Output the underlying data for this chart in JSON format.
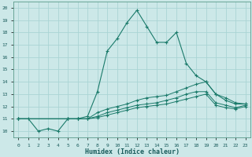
{
  "xlabel": "Humidex (Indice chaleur)",
  "ylabel": "",
  "bg_color": "#cce8e8",
  "grid_color": "#aad4d4",
  "line_color": "#1a7a6a",
  "xlim": [
    -0.5,
    23.5
  ],
  "ylim": [
    9.5,
    20.5
  ],
  "yticks": [
    10,
    11,
    12,
    13,
    14,
    15,
    16,
    17,
    18,
    19,
    20
  ],
  "xticks": [
    0,
    1,
    2,
    3,
    4,
    5,
    6,
    7,
    8,
    9,
    10,
    11,
    12,
    13,
    14,
    15,
    16,
    17,
    18,
    19,
    20,
    21,
    22,
    23
  ],
  "lines": [
    {
      "x": [
        0,
        1,
        2,
        3,
        4,
        5,
        6,
        7,
        8,
        9,
        10,
        11,
        12,
        13,
        14,
        15,
        16,
        17,
        18,
        19,
        20,
        21,
        22,
        23
      ],
      "y": [
        11,
        11,
        10,
        10.2,
        10,
        11,
        11,
        11.2,
        13.2,
        16.5,
        17.5,
        18.8,
        19.8,
        18.5,
        17.2,
        17.2,
        18,
        15.5,
        14.5,
        14,
        13,
        12.5,
        12.2,
        12.2
      ]
    },
    {
      "x": [
        0,
        5,
        6,
        7,
        8,
        9,
        10,
        11,
        12,
        13,
        14,
        15,
        16,
        17,
        18,
        19,
        20,
        21,
        22,
        23
      ],
      "y": [
        11,
        11,
        11,
        11,
        11.5,
        11.8,
        12,
        12.2,
        12.5,
        12.7,
        12.8,
        12.9,
        13.2,
        13.5,
        13.8,
        14,
        13,
        12.7,
        12.3,
        12.2
      ]
    },
    {
      "x": [
        0,
        5,
        6,
        7,
        8,
        9,
        10,
        11,
        12,
        13,
        14,
        15,
        16,
        17,
        18,
        19,
        20,
        21,
        22,
        23
      ],
      "y": [
        11,
        11,
        11,
        11,
        11.2,
        11.5,
        11.7,
        11.9,
        12.1,
        12.2,
        12.3,
        12.5,
        12.7,
        13,
        13.2,
        13.2,
        12.3,
        12.1,
        11.9,
        12.1
      ]
    },
    {
      "x": [
        0,
        5,
        6,
        7,
        8,
        9,
        10,
        11,
        12,
        13,
        14,
        15,
        16,
        17,
        18,
        19,
        20,
        21,
        22,
        23
      ],
      "y": [
        11,
        11,
        11,
        11,
        11.1,
        11.3,
        11.5,
        11.7,
        11.9,
        12,
        12.1,
        12.2,
        12.4,
        12.6,
        12.8,
        13,
        12.1,
        11.9,
        11.8,
        12
      ]
    }
  ]
}
